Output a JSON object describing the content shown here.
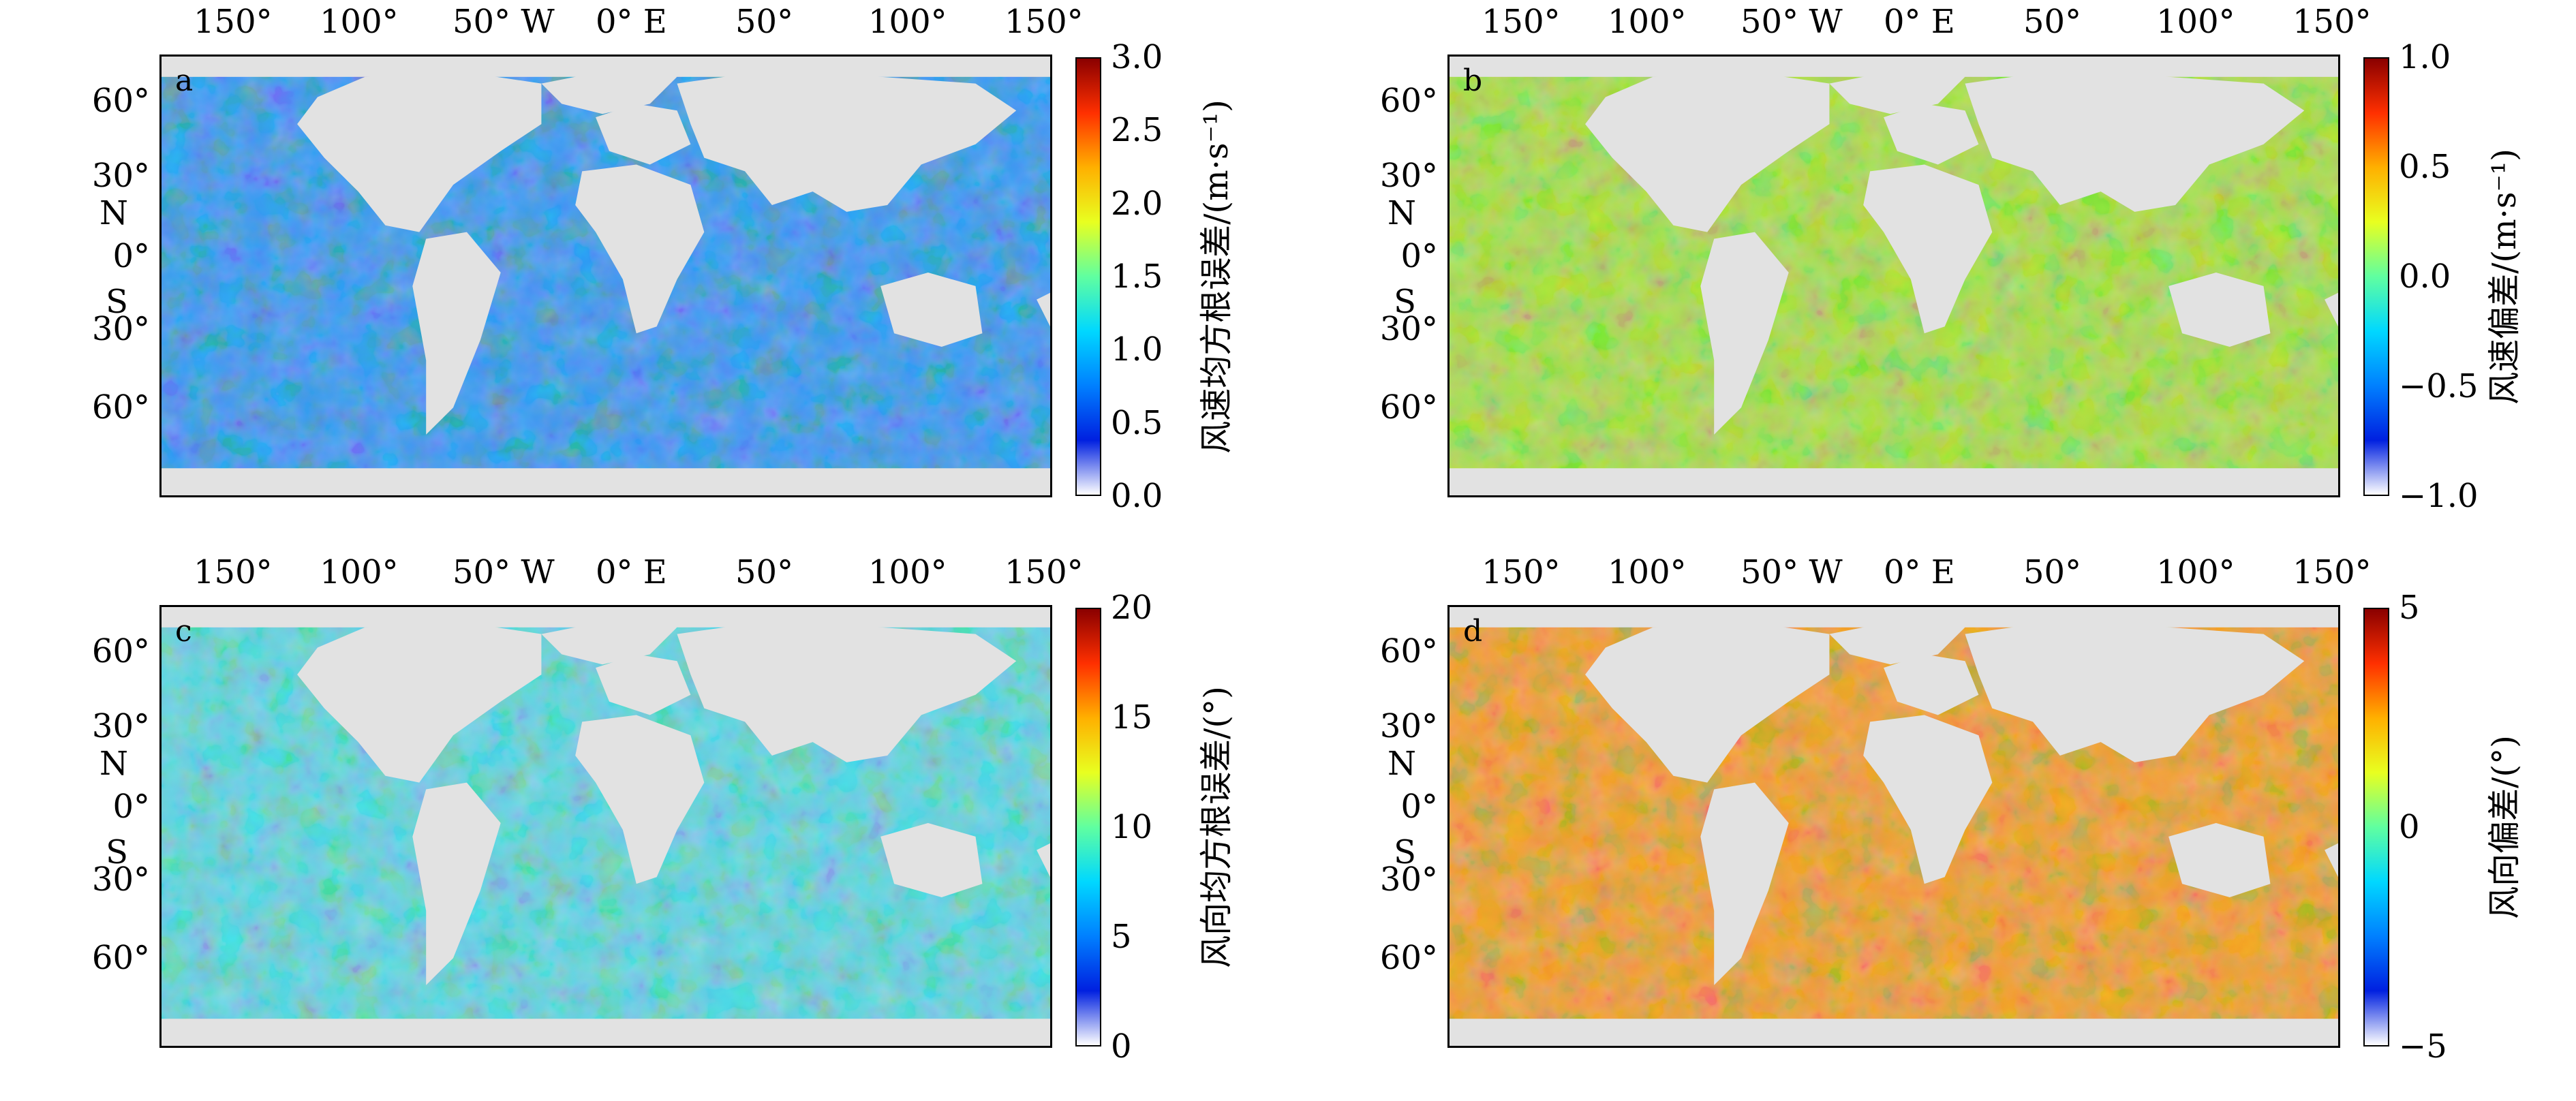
{
  "axes": {
    "longitude_labels": [
      "150°",
      "100°",
      "50° W",
      "0° E",
      "50°",
      "100°",
      "150°"
    ],
    "latitude_labels": [
      "60°",
      "30°",
      "0°",
      "30°",
      "60°"
    ],
    "hemisphere_north": "N",
    "hemisphere_south": "S"
  },
  "panels": [
    {
      "letter": "a",
      "colorbar_label": "风速均方根误差/(m·s⁻¹)",
      "colorbar_ticks": [
        "3.0",
        "2.5",
        "2.0",
        "1.5",
        "1.0",
        "0.5",
        "0.0"
      ],
      "colorbar_range": [
        0.0,
        3.0
      ],
      "ocean_colour": "#3a9af0"
    },
    {
      "letter": "b",
      "colorbar_label": "风速偏差/(m·s⁻¹)",
      "colorbar_ticks": [
        "1.0",
        "0.5",
        "0.0",
        "−0.5",
        "−1.0"
      ],
      "colorbar_range": [
        -1.0,
        1.0
      ],
      "ocean_colour": "#a8e04a"
    },
    {
      "letter": "c",
      "colorbar_label": "风向均方根误差/(°)",
      "colorbar_ticks": [
        "20",
        "15",
        "10",
        "5",
        "0"
      ],
      "colorbar_range": [
        0,
        20
      ],
      "ocean_colour": "#5fd6e0"
    },
    {
      "letter": "d",
      "colorbar_label": "风向偏差/(°)",
      "colorbar_ticks": [
        "5",
        "0",
        "−5"
      ],
      "colorbar_range": [
        -5,
        5
      ],
      "ocean_colour": "#f0a030"
    }
  ],
  "colors": {
    "land": "#e2e2e2",
    "colormap": [
      "#ffffff",
      "#0020e0",
      "#0080ff",
      "#00d8ff",
      "#60ffa0",
      "#e8ff20",
      "#ffb000",
      "#ff3000",
      "#8a0000"
    ]
  }
}
